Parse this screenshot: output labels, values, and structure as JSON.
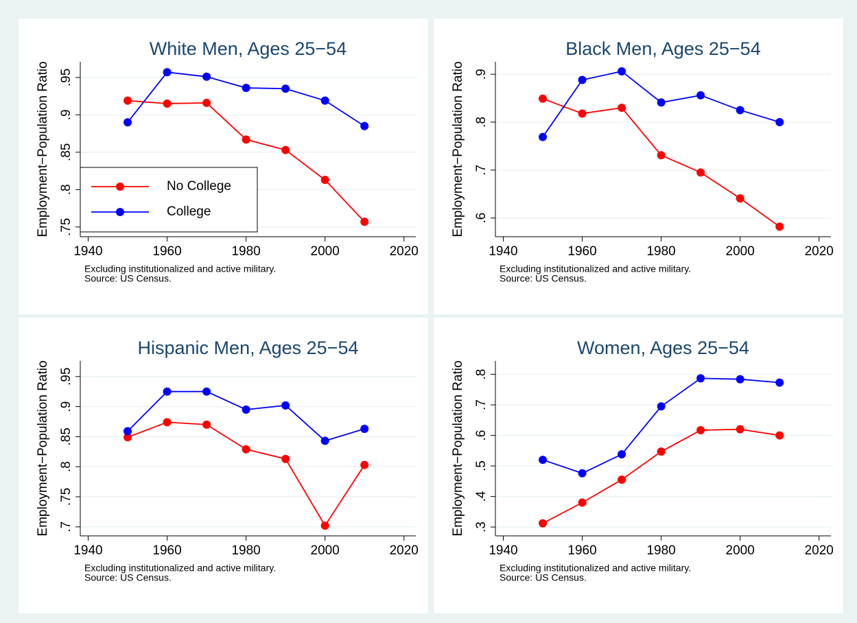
{
  "chart_data": [
    {
      "type": "line",
      "title": "White Men, Ages 25−54",
      "ylabel": "Employment−Population Ratio",
      "note": [
        "Excluding institutionalized and active military.",
        "Source: US Census."
      ],
      "x": [
        1950,
        1960,
        1970,
        1980,
        1990,
        2000,
        2010
      ],
      "series": [
        {
          "name": "No College",
          "color": "#ff0000",
          "values": [
            0.919,
            0.915,
            0.916,
            0.867,
            0.853,
            0.813,
            0.757
          ]
        },
        {
          "name": "College",
          "color": "#0000ff",
          "values": [
            0.89,
            0.957,
            0.951,
            0.936,
            0.935,
            0.919,
            0.885
          ]
        }
      ],
      "xlim": [
        1938,
        2023
      ],
      "xticks": [
        1940,
        1960,
        1980,
        2000,
        2020
      ],
      "ylim": [
        0.737,
        0.971
      ],
      "yticks": [
        {
          "value": 0.75,
          "label": ".75"
        },
        {
          "value": 0.8,
          "label": ".8"
        },
        {
          "value": 0.85,
          "label": ".85"
        },
        {
          "value": 0.9,
          "label": ".9"
        },
        {
          "value": 0.95,
          "label": ".95"
        }
      ],
      "grid": true,
      "legend": "lower left"
    },
    {
      "type": "line",
      "title": "Black Men, Ages 25−54",
      "ylabel": "Employment−Population Ratio",
      "note": [
        "Excluding institutionalized and active military.",
        "Source: US Census."
      ],
      "x": [
        1950,
        1960,
        1970,
        1980,
        1990,
        2000,
        2010
      ],
      "series": [
        {
          "color": "#ff0000",
          "values": [
            0.849,
            0.818,
            0.83,
            0.731,
            0.695,
            0.641,
            0.582
          ]
        },
        {
          "color": "#0000ff",
          "values": [
            0.769,
            0.888,
            0.906,
            0.841,
            0.856,
            0.825,
            0.8
          ]
        }
      ],
      "xlim": [
        1938,
        2023
      ],
      "xticks": [
        1940,
        1960,
        1980,
        2000,
        2020
      ],
      "ylim": [
        0.561,
        0.926
      ],
      "yticks": [
        {
          "value": 0.6,
          "label": ".6"
        },
        {
          "value": 0.7,
          "label": ".7"
        },
        {
          "value": 0.8,
          "label": ".8"
        },
        {
          "value": 0.9,
          "label": ".9"
        }
      ],
      "grid": true
    },
    {
      "type": "line",
      "title": "Hispanic Men, Ages 25−54",
      "ylabel": "Employment−Population Ratio",
      "note": [
        "Excluding institutionalized and active military.",
        "Source: US Census."
      ],
      "x": [
        1950,
        1960,
        1970,
        1980,
        1990,
        2000,
        2010
      ],
      "series": [
        {
          "color": "#ff0000",
          "values": [
            0.849,
            0.874,
            0.87,
            0.829,
            0.813,
            0.702,
            0.803
          ]
        },
        {
          "color": "#0000ff",
          "values": [
            0.859,
            0.925,
            0.925,
            0.895,
            0.902,
            0.843,
            0.863
          ]
        }
      ],
      "xlim": [
        1938,
        2023
      ],
      "xticks": [
        1940,
        1960,
        1980,
        2000,
        2020
      ],
      "ylim": [
        0.685,
        0.976
      ],
      "yticks": [
        {
          "value": 0.7,
          "label": ".7"
        },
        {
          "value": 0.75,
          "label": ".75"
        },
        {
          "value": 0.8,
          "label": ".8"
        },
        {
          "value": 0.85,
          "label": ".85"
        },
        {
          "value": 0.9,
          "label": ".9"
        },
        {
          "value": 0.95,
          "label": ".95"
        }
      ],
      "grid": true
    },
    {
      "type": "line",
      "title": "Women, Ages 25−54",
      "ylabel": "Employment−Population Ratio",
      "note": [
        "Excluding institutionalized and active military.",
        "Source: US Census."
      ],
      "x": [
        1950,
        1960,
        1970,
        1980,
        1990,
        2000,
        2010
      ],
      "series": [
        {
          "color": "#ff0000",
          "values": [
            0.312,
            0.38,
            0.455,
            0.547,
            0.617,
            0.62,
            0.6
          ]
        },
        {
          "color": "#0000ff",
          "values": [
            0.52,
            0.476,
            0.538,
            0.695,
            0.787,
            0.784,
            0.773
          ]
        }
      ],
      "xlim": [
        1938,
        2023
      ],
      "xticks": [
        1940,
        1960,
        1980,
        2000,
        2020
      ],
      "ylim": [
        0.271,
        0.844
      ],
      "yticks": [
        {
          "value": 0.3,
          "label": ".3"
        },
        {
          "value": 0.4,
          "label": ".4"
        },
        {
          "value": 0.5,
          "label": ".5"
        },
        {
          "value": 0.6,
          "label": ".6"
        },
        {
          "value": 0.7,
          "label": ".7"
        },
        {
          "value": 0.8,
          "label": ".8"
        }
      ],
      "grid": true
    }
  ]
}
